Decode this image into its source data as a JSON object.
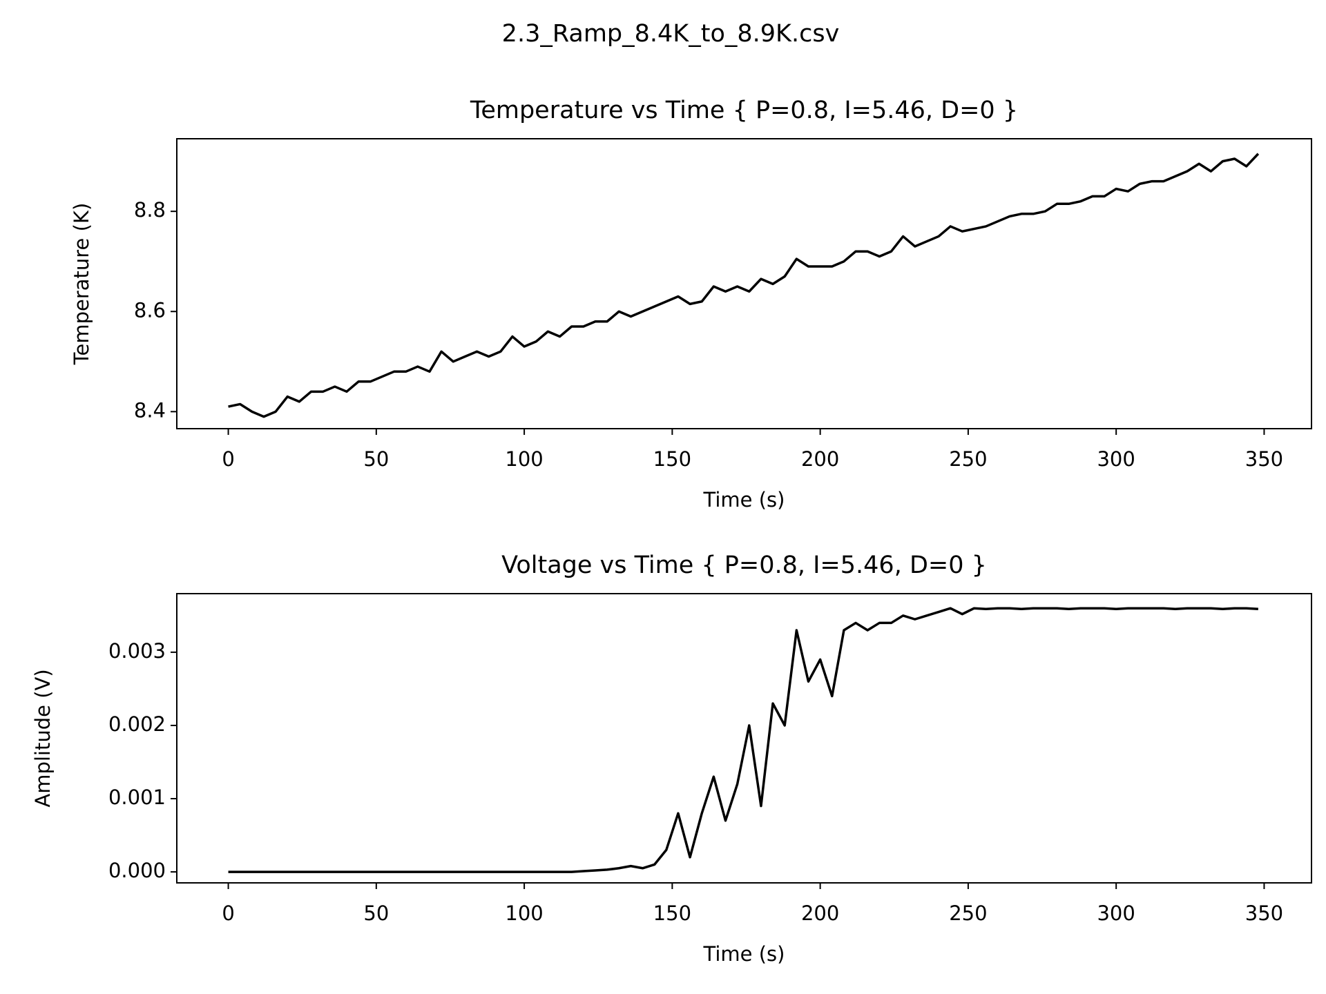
{
  "title": "2.3_Ramp_8.4K_to_8.9K.csv",
  "chart_data": [
    {
      "type": "line",
      "title": "Temperature vs Time { P=0.8, I=5.46, D=0 }",
      "x_label": "Time (s)",
      "y_label": "Temperature (K)",
      "xlim": [
        -17.4,
        366
      ],
      "xticks": [
        0,
        50,
        100,
        150,
        200,
        250,
        300,
        350
      ],
      "ylim": [
        8.366,
        8.945
      ],
      "yticks": [
        8.4,
        8.6,
        8.8
      ],
      "grid": false,
      "x": [
        0,
        4,
        8,
        12,
        16,
        20,
        24,
        28,
        32,
        36,
        40,
        44,
        48,
        52,
        56,
        60,
        64,
        68,
        72,
        76,
        80,
        84,
        88,
        92,
        96,
        100,
        104,
        108,
        112,
        116,
        120,
        124,
        128,
        132,
        136,
        140,
        144,
        148,
        152,
        156,
        160,
        164,
        168,
        172,
        176,
        180,
        184,
        188,
        192,
        196,
        200,
        204,
        208,
        212,
        216,
        220,
        224,
        228,
        232,
        236,
        240,
        244,
        248,
        252,
        256,
        260,
        264,
        268,
        272,
        276,
        280,
        284,
        288,
        292,
        296,
        300,
        304,
        308,
        312,
        316,
        320,
        324,
        328,
        332,
        336,
        340,
        344,
        348
      ],
      "series": [
        {
          "name": "Temperature",
          "color": "#000000",
          "values": [
            8.41,
            8.415,
            8.4,
            8.39,
            8.4,
            8.43,
            8.42,
            8.44,
            8.44,
            8.45,
            8.44,
            8.46,
            8.46,
            8.47,
            8.48,
            8.48,
            8.49,
            8.48,
            8.52,
            8.5,
            8.51,
            8.52,
            8.51,
            8.52,
            8.55,
            8.53,
            8.54,
            8.56,
            8.55,
            8.57,
            8.57,
            8.58,
            8.58,
            8.6,
            8.59,
            8.6,
            8.61,
            8.62,
            8.63,
            8.615,
            8.62,
            8.65,
            8.64,
            8.65,
            8.64,
            8.665,
            8.655,
            8.67,
            8.705,
            8.69,
            8.69,
            8.69,
            8.7,
            8.72,
            8.72,
            8.71,
            8.72,
            8.75,
            8.73,
            8.74,
            8.75,
            8.77,
            8.76,
            8.765,
            8.77,
            8.78,
            8.79,
            8.795,
            8.795,
            8.8,
            8.815,
            8.815,
            8.82,
            8.83,
            8.83,
            8.845,
            8.84,
            8.855,
            8.86,
            8.86,
            8.87,
            8.88,
            8.895,
            8.88,
            8.9,
            8.905,
            8.89,
            8.915
          ]
        }
      ]
    },
    {
      "type": "line",
      "title": "Voltage vs Time { P=0.8, I=5.46, D=0 }",
      "x_label": "Time (s)",
      "y_label": "Amplitude (V)",
      "xlim": [
        -17.4,
        366
      ],
      "xticks": [
        0,
        50,
        100,
        150,
        200,
        250,
        300,
        350
      ],
      "ylim": [
        -0.00015,
        0.0038
      ],
      "yticks": [
        {
          "value": 0,
          "label": "0.000"
        },
        {
          "value": 0.001,
          "label": "0.001"
        },
        {
          "value": 0.002,
          "label": "0.002"
        },
        {
          "value": 0.003,
          "label": "0.003"
        }
      ],
      "grid": false,
      "x": [
        0,
        4,
        8,
        12,
        16,
        20,
        24,
        28,
        32,
        36,
        40,
        44,
        48,
        52,
        56,
        60,
        64,
        68,
        72,
        76,
        80,
        84,
        88,
        92,
        96,
        100,
        104,
        108,
        112,
        116,
        120,
        124,
        128,
        132,
        136,
        140,
        144,
        148,
        152,
        156,
        160,
        164,
        168,
        172,
        176,
        180,
        184,
        188,
        192,
        196,
        200,
        204,
        208,
        212,
        216,
        220,
        224,
        228,
        232,
        236,
        240,
        244,
        248,
        252,
        256,
        260,
        264,
        268,
        272,
        276,
        280,
        284,
        288,
        292,
        296,
        300,
        304,
        308,
        312,
        316,
        320,
        324,
        328,
        332,
        336,
        340,
        344,
        348
      ],
      "series": [
        {
          "name": "Amplitude",
          "color": "#000000",
          "values": [
            0,
            0,
            0,
            0,
            0,
            0,
            0,
            0,
            0,
            0,
            0,
            0,
            0,
            0,
            0,
            0,
            0,
            0,
            0,
            0,
            0,
            0,
            0,
            0,
            0,
            0,
            0,
            0,
            0,
            0,
            1e-05,
            2e-05,
            3e-05,
            5e-05,
            8e-05,
            5e-05,
            0.0001,
            0.0003,
            0.0008,
            0.0002,
            0.0008,
            0.0013,
            0.0007,
            0.0012,
            0.002,
            0.0009,
            0.0023,
            0.002,
            0.0033,
            0.0026,
            0.0029,
            0.0024,
            0.0033,
            0.0034,
            0.0033,
            0.0034,
            0.0034,
            0.0035,
            0.00345,
            0.0035,
            0.00355,
            0.0036,
            0.00352,
            0.0036,
            0.00359,
            0.0036,
            0.0036,
            0.00359,
            0.0036,
            0.0036,
            0.0036,
            0.00359,
            0.0036,
            0.0036,
            0.0036,
            0.00359,
            0.0036,
            0.0036,
            0.0036,
            0.0036,
            0.00359,
            0.0036,
            0.0036,
            0.0036,
            0.00359,
            0.0036,
            0.0036,
            0.00359
          ]
        }
      ]
    }
  ]
}
